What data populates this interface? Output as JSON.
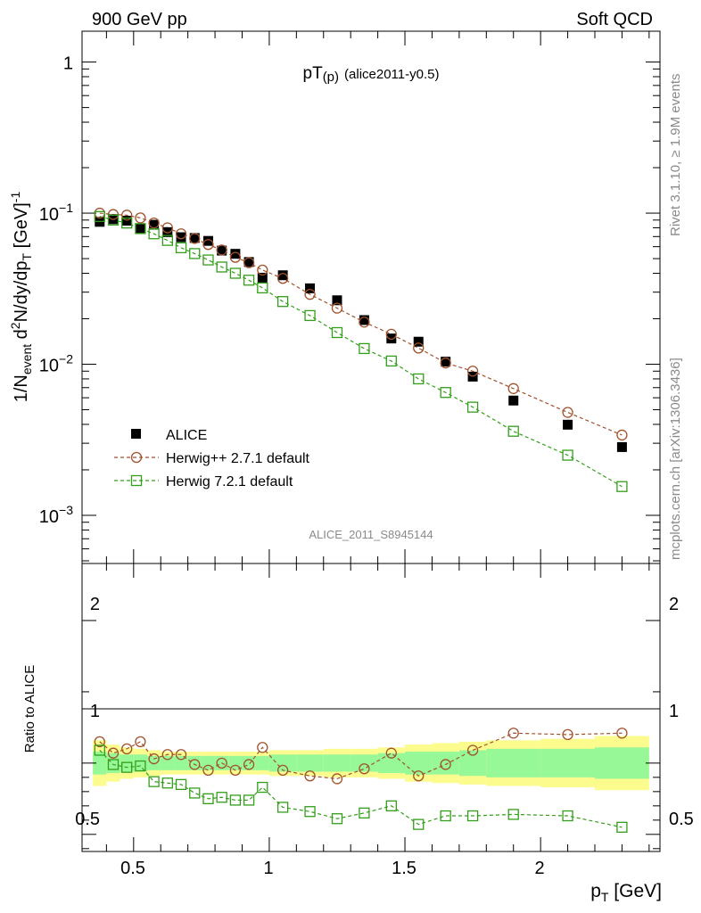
{
  "header": {
    "left": "900 GeV pp",
    "right": "Soft QCD"
  },
  "side_labels": {
    "rivet": "Rivet 3.1.10, ≥ 1.9M events",
    "mcplots": "mcplots.cern.ch [arXiv:1306.3436]"
  },
  "analysis_id": "ALICE_2011_S8945144",
  "chart_data": [
    {
      "type": "scatter",
      "title": "pT(p) (alice2011-y0.5)",
      "title_main": "pT",
      "title_sub": "(p)",
      "title_tail": "(alice2011-y0.5)",
      "ylabel_parts": {
        "p1": "1/N",
        "sub1": "event",
        "p2": " d",
        "sup1": "2",
        "p3": "N/dy/dp",
        "sub2": "T",
        "p4": " [GeV]",
        "sup2": "-1"
      },
      "yscale": "log",
      "ylim": [
        0.00048,
        1.6
      ],
      "xlim": [
        0.31,
        2.44
      ],
      "ytick_labels": [
        {
          "value": 1,
          "base": "1",
          "exp": ""
        },
        {
          "value": 0.1,
          "base": "10",
          "exp": "−1"
        },
        {
          "value": 0.01,
          "base": "10",
          "exp": "−2"
        },
        {
          "value": 0.001,
          "base": "10",
          "exp": "−3"
        }
      ],
      "legend_position": "bottom-left",
      "x": [
        0.375,
        0.425,
        0.475,
        0.525,
        0.575,
        0.625,
        0.675,
        0.725,
        0.775,
        0.825,
        0.875,
        0.925,
        0.975,
        1.05,
        1.15,
        1.25,
        1.35,
        1.45,
        1.55,
        1.65,
        1.75,
        1.9,
        2.1,
        2.3
      ],
      "series": [
        {
          "name": "ALICE",
          "color": "#000000",
          "marker": "filled-square",
          "values": [
            0.0876,
            0.0912,
            0.0891,
            0.0795,
            0.0838,
            0.0749,
            0.0693,
            0.0685,
            0.0655,
            0.0565,
            0.0538,
            0.0475,
            0.0374,
            0.0388,
            0.0318,
            0.0265,
            0.0196,
            0.0148,
            0.0141,
            0.0104,
            0.00828,
            0.00575,
            0.00398,
            0.00283
          ]
        },
        {
          "name": "Herwig++ 2.7.1 default",
          "color": "#a0522d",
          "marker": "open-circle",
          "line": "dashed",
          "values": [
            0.1,
            0.098,
            0.097,
            0.093,
            0.086,
            0.08,
            0.073,
            0.068,
            0.062,
            0.057,
            0.051,
            0.047,
            0.042,
            0.037,
            0.029,
            0.0235,
            0.019,
            0.0158,
            0.0128,
            0.0102,
            0.009,
            0.0069,
            0.0048,
            0.0034
          ]
        },
        {
          "name": "Herwig 7.2.1 default",
          "color": "#339e1a",
          "marker": "open-square",
          "line": "dashed",
          "values": [
            0.095,
            0.09,
            0.086,
            0.079,
            0.073,
            0.066,
            0.059,
            0.054,
            0.049,
            0.044,
            0.04,
            0.036,
            0.032,
            0.026,
            0.021,
            0.0162,
            0.0127,
            0.0105,
            0.008,
            0.0065,
            0.0052,
            0.0036,
            0.0025,
            0.00155
          ]
        }
      ]
    },
    {
      "type": "line",
      "ylabel": "Ratio to ALICE",
      "ylim": [
        0.38,
        2.4
      ],
      "xlim": [
        0.31,
        2.44
      ],
      "xlabel_main": "p",
      "xlabel_sub": "T",
      "xlabel_unit": " [GeV]",
      "x_ticks": [
        "0.5",
        "1",
        "1.5",
        "2"
      ],
      "y_ticks": [
        "0.5",
        "1",
        "2"
      ],
      "x": [
        0.375,
        0.425,
        0.475,
        0.525,
        0.575,
        0.625,
        0.675,
        0.725,
        0.775,
        0.825,
        0.875,
        0.925,
        0.975,
        1.05,
        1.15,
        1.25,
        1.35,
        1.45,
        1.55,
        1.65,
        1.75,
        1.9,
        2.1,
        2.3
      ],
      "bin_edges": [
        0.35,
        0.4,
        0.45,
        0.5,
        0.55,
        0.6,
        0.65,
        0.7,
        0.75,
        0.8,
        0.85,
        0.9,
        0.95,
        1.0,
        1.1,
        1.2,
        1.3,
        1.4,
        1.5,
        1.6,
        1.7,
        1.8,
        2.0,
        2.2,
        2.4
      ],
      "band_inner": [
        0.08,
        0.07,
        0.06,
        0.06,
        0.05,
        0.05,
        0.05,
        0.05,
        0.05,
        0.05,
        0.05,
        0.05,
        0.05,
        0.06,
        0.06,
        0.06,
        0.06,
        0.07,
        0.08,
        0.08,
        0.09,
        0.1,
        0.1,
        0.11
      ],
      "band_outer": [
        0.16,
        0.13,
        0.11,
        0.1,
        0.09,
        0.08,
        0.08,
        0.08,
        0.08,
        0.08,
        0.08,
        0.08,
        0.08,
        0.09,
        0.09,
        0.1,
        0.1,
        0.11,
        0.13,
        0.14,
        0.15,
        0.16,
        0.17,
        0.19
      ],
      "series": [
        {
          "name": "Herwig++ 2.7.1 default",
          "color": "#a0522d",
          "marker": "open-circle",
          "values": [
            1.15,
            1.07,
            1.1,
            1.15,
            1.03,
            1.06,
            1.06,
            0.99,
            0.95,
            1.0,
            0.95,
            0.99,
            1.11,
            0.95,
            0.91,
            0.89,
            0.96,
            1.07,
            0.91,
            0.99,
            1.09,
            1.21,
            1.2,
            1.21
          ]
        },
        {
          "name": "Herwig 7.2.1 default",
          "color": "#339e1a",
          "marker": "open-square",
          "values": [
            1.09,
            0.99,
            0.97,
            0.98,
            0.87,
            0.86,
            0.85,
            0.79,
            0.75,
            0.76,
            0.74,
            0.74,
            0.83,
            0.69,
            0.66,
            0.61,
            0.65,
            0.7,
            0.57,
            0.63,
            0.63,
            0.64,
            0.63,
            0.55
          ]
        }
      ]
    }
  ]
}
